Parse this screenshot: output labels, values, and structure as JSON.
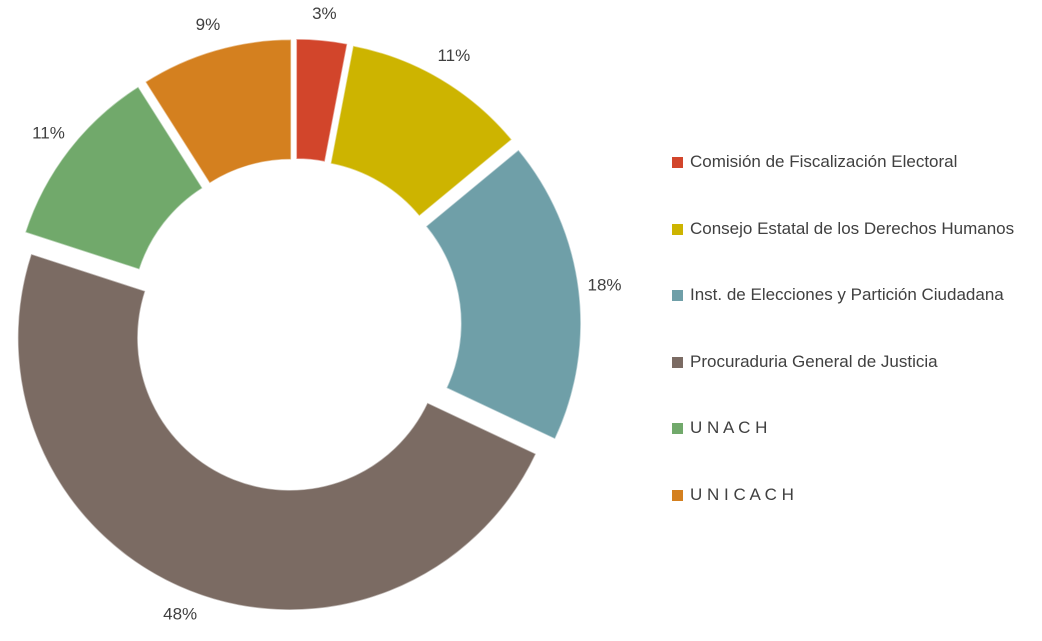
{
  "chart_data": {
    "type": "donut",
    "categories": [
      "Comisión de Fiscalización Electoral",
      "Consejo Estatal de los Derechos Humanos",
      "Inst. de Elecciones y Partición Ciudadana",
      "Procuraduria General de Justicia",
      "U N A C H",
      "U N I C A C H"
    ],
    "values": [
      3,
      11,
      18,
      48,
      11,
      9
    ],
    "value_labels": [
      "3%",
      "11%",
      "18%",
      "48%",
      "11%",
      "9%"
    ],
    "colors": [
      "#d2452b",
      "#cdb400",
      "#6f9fa8",
      "#7b6b63",
      "#71a96b",
      "#d4801f"
    ],
    "legend": "right"
  }
}
